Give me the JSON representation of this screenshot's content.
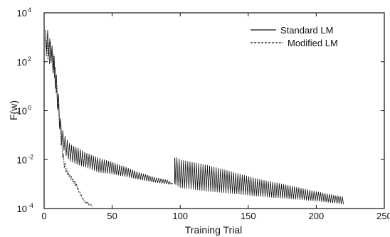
{
  "chart_data": {
    "type": "line",
    "title": "",
    "xlabel": "Training Trial",
    "ylabel": "F(w)",
    "xlim": [
      0,
      250
    ],
    "ylim": [
      0.0001,
      10000
    ],
    "yscale": "log",
    "grid": false,
    "legend_position": "top-right",
    "x_ticks": [
      0,
      50,
      100,
      150,
      200,
      250
    ],
    "y_ticks": [
      {
        "value": 0.0001,
        "base": "10",
        "exp": "-4"
      },
      {
        "value": 0.01,
        "base": "10",
        "exp": "-2"
      },
      {
        "value": 1,
        "base": "10",
        "exp": "0"
      },
      {
        "value": 100,
        "base": "10",
        "exp": "2"
      },
      {
        "value": 10000,
        "base": "10",
        "exp": "4"
      }
    ],
    "series": [
      {
        "name": "Standard LM",
        "style": "solid",
        "color": "#111111",
        "envelope": {
          "x": [
            1,
            2,
            3,
            4,
            5,
            6,
            7,
            8,
            9,
            10,
            11,
            12,
            13,
            14,
            15,
            16,
            18,
            20,
            25,
            30,
            40,
            50,
            60,
            70,
            80,
            90,
            95
          ],
          "upper": [
            2000,
            3000,
            1500,
            1000,
            600,
            400,
            250,
            100,
            30,
            10,
            3,
            0.6,
            0.2,
            0.15,
            0.1,
            0.08,
            0.05,
            0.04,
            0.03,
            0.02,
            0.012,
            0.008,
            0.005,
            0.003,
            0.002,
            0.0015,
            0.001
          ],
          "lower": [
            200,
            300,
            200,
            150,
            100,
            50,
            25,
            10,
            3,
            1,
            0.3,
            0.08,
            0.04,
            0.03,
            0.02,
            0.015,
            0.01,
            0.008,
            0.006,
            0.005,
            0.003,
            0.0025,
            0.002,
            0.0015,
            0.0012,
            0.001,
            0.001
          ]
        },
        "envelope2": {
          "x": [
            96,
            97,
            100,
            120,
            140,
            160,
            180,
            200,
            220
          ],
          "upper": [
            0.012,
            0.013,
            0.01,
            0.006,
            0.003,
            0.0015,
            0.0009,
            0.0005,
            0.0003
          ],
          "lower": [
            0.001,
            0.0009,
            0.0007,
            0.0005,
            0.0004,
            0.0003,
            0.00025,
            0.0002,
            0.00015
          ]
        }
      },
      {
        "name": "Modified LM",
        "style": "dashed",
        "color": "#111111",
        "envelope": {
          "x": [
            1,
            2,
            3,
            4,
            5,
            6,
            7,
            8,
            9,
            10,
            11,
            12,
            13,
            14,
            15,
            16,
            18,
            20,
            22,
            24,
            26,
            28,
            30,
            32,
            34,
            36
          ],
          "upper": [
            1000,
            800,
            600,
            500,
            800,
            400,
            200,
            80,
            20,
            5,
            1,
            0.2,
            0.05,
            0.02,
            0.01,
            0.005,
            0.003,
            0.002,
            0.0015,
            0.001,
            0.0005,
            0.0003,
            0.0002,
            0.00018,
            0.00015,
            0.00012
          ],
          "lower": [
            200,
            150,
            100,
            80,
            100,
            60,
            40,
            15,
            4,
            1,
            0.3,
            0.06,
            0.02,
            0.008,
            0.004,
            0.003,
            0.002,
            0.0015,
            0.001,
            0.0007,
            0.0004,
            0.00025,
            0.00018,
            0.00015,
            0.00013,
            0.00012
          ]
        }
      }
    ]
  }
}
